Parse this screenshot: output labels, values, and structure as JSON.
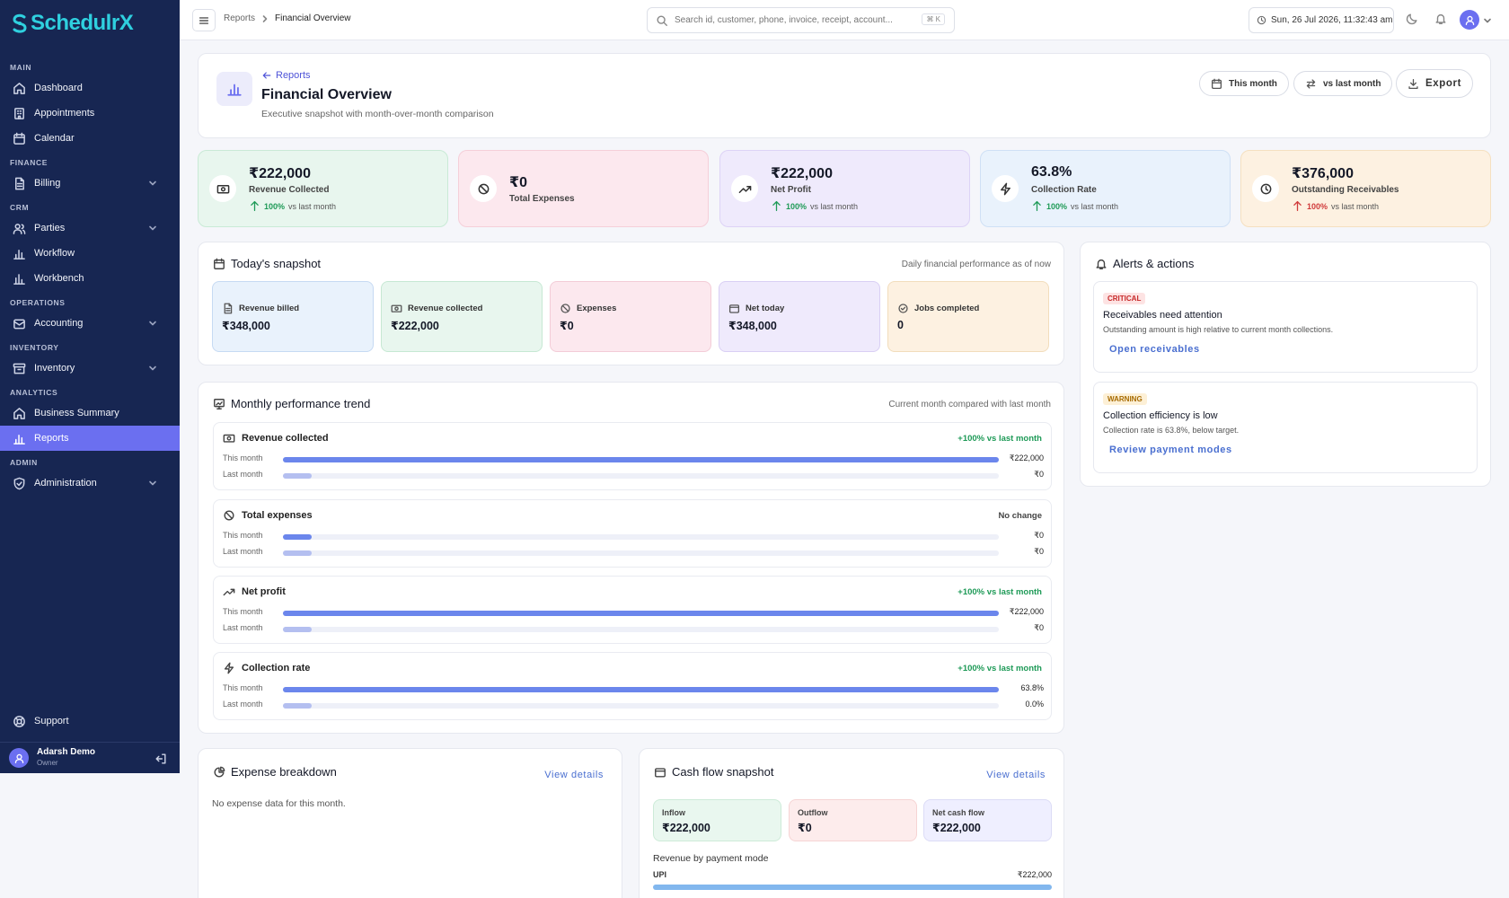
{
  "app": {
    "name_prefix": "Schedulr",
    "name_suffix": "X"
  },
  "sidebar": {
    "sections": {
      "main": "MAIN",
      "finance": "FINANCE",
      "crm": "CRM",
      "operations": "OPERATIONS",
      "inventory": "INVENTORY",
      "analytics": "ANALYTICS",
      "admin": "ADMIN"
    },
    "items": {
      "dashboard": "Dashboard",
      "appointments": "Appointments",
      "calendar": "Calendar",
      "billing": "Billing",
      "parties": "Parties",
      "workflow": "Workflow",
      "workbench": "Workbench",
      "accounting": "Accounting",
      "inventory": "Inventory",
      "business_summary": "Business Summary",
      "reports": "Reports",
      "administration": "Administration"
    },
    "support": "Support",
    "user": {
      "name": "Adarsh Demo",
      "role": "Owner"
    }
  },
  "topbar": {
    "breadcrumb": {
      "parent": "Reports",
      "current": "Financial Overview"
    },
    "search_placeholder": "Search id, customer, phone, invoice, receipt, account...",
    "search_shortcut": "⌘ K",
    "datetime": "Sun, 26 Jul 2026, 11:32:43 am"
  },
  "header": {
    "back_label": "Reports",
    "title": "Financial Overview",
    "subtitle": "Executive snapshot with month-over-month comparison",
    "period_button": "This month",
    "compare_button": "vs last month",
    "export_button": "Export"
  },
  "kpis": [
    {
      "value": "₹222,000",
      "label": "Revenue Collected",
      "pct": "100%",
      "vs": "vs last month",
      "icon": "banknote-icon",
      "trend_color": "#1e9a57"
    },
    {
      "value": "₹0",
      "label": "Total Expenses",
      "icon": "ban-icon"
    },
    {
      "value": "₹222,000",
      "label": "Net Profit",
      "pct": "100%",
      "vs": "vs last month",
      "icon": "trending-up-icon",
      "trend_color": "#1e9a57"
    },
    {
      "value": "63.8%",
      "label": "Collection Rate",
      "pct": "100%",
      "vs": "vs last month",
      "icon": "zap-icon",
      "trend_color": "#1e9a57"
    },
    {
      "value": "₹376,000",
      "label": "Outstanding Receivables",
      "pct": "100%",
      "vs": "vs last month",
      "icon": "clock-icon",
      "trend_color": "#d03a3a"
    }
  ],
  "snapshot": {
    "title": "Today's snapshot",
    "subtitle": "Daily financial performance as of now",
    "items": [
      {
        "label": "Revenue billed",
        "value": "₹348,000"
      },
      {
        "label": "Revenue collected",
        "value": "₹222,000"
      },
      {
        "label": "Expenses",
        "value": "₹0"
      },
      {
        "label": "Net today",
        "value": "₹348,000"
      },
      {
        "label": "Jobs completed",
        "value": "0"
      }
    ]
  },
  "alerts": {
    "title": "Alerts & actions",
    "items": [
      {
        "badge": "CRITICAL",
        "title": "Receivables need attention",
        "desc": "Outstanding amount is high relative to current month collections.",
        "link": "Open receivables"
      },
      {
        "badge": "WARNING",
        "title": "Collection efficiency is low",
        "desc": "Collection rate is 63.8%, below target.",
        "link": "Review payment modes"
      }
    ]
  },
  "trend": {
    "title": "Monthly performance trend",
    "subtitle": "Current month compared with last month",
    "this_label": "This month",
    "last_label": "Last month",
    "metrics": [
      {
        "name": "Revenue collected",
        "change": "+100% vs last month",
        "this_value": "₹222,000",
        "last_value": "₹0",
        "this_fraction": 1.0,
        "last_fraction": 0.04
      },
      {
        "name": "Total expenses",
        "change": "No change",
        "this_value": "₹0",
        "last_value": "₹0",
        "this_fraction": 0.04,
        "last_fraction": 0.04
      },
      {
        "name": "Net profit",
        "change": "+100% vs last month",
        "this_value": "₹222,000",
        "last_value": "₹0",
        "this_fraction": 1.0,
        "last_fraction": 0.04
      },
      {
        "name": "Collection rate",
        "change": "+100% vs last month",
        "this_value": "63.8%",
        "last_value": "0.0%",
        "this_fraction": 1.0,
        "last_fraction": 0.04
      }
    ]
  },
  "expense": {
    "title": "Expense breakdown",
    "view": "View details",
    "empty": "No expense data for this month."
  },
  "cashflow": {
    "title": "Cash flow snapshot",
    "view": "View details",
    "inflow_label": "Inflow",
    "inflow_value": "₹222,000",
    "outflow_label": "Outflow",
    "outflow_value": "₹0",
    "net_label": "Net cash flow",
    "net_value": "₹222,000",
    "payment_title": "Revenue by payment mode",
    "payment_mode": "UPI",
    "payment_value": "₹222,000",
    "payment_fraction": 1.0
  },
  "colors": {
    "sidebar_bg": "#172652",
    "accent": "#6b6ff0",
    "positive": "#1e9a57",
    "negative": "#d03a3a",
    "link": "#4a6fd0"
  }
}
